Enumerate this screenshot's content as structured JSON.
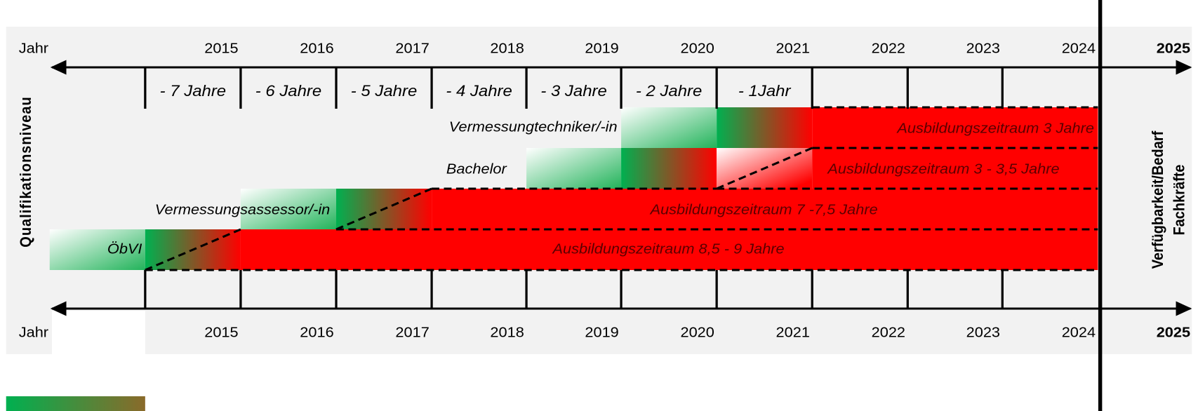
{
  "top_axis": {
    "start": "Jahr",
    "years": [
      "2015",
      "2016",
      "2017",
      "2018",
      "2019",
      "2020",
      "2021",
      "2022",
      "2023",
      "2024"
    ],
    "end": "2025"
  },
  "offsets": [
    "- 7 Jahre",
    "- 6 Jahre",
    "- 5 Jahre",
    "- 4 Jahre",
    "- 3 Jahre",
    "- 2 Jahre",
    "- 1Jahr"
  ],
  "rows": [
    {
      "label": "Vermessungtechniker/-in",
      "duration": "Ausbildungszeitraum 3 Jahre"
    },
    {
      "label": "Bachelor",
      "duration": "Ausbildungszeitraum 3 - 3,5 Jahre"
    },
    {
      "label": "Vermessungsassessor/-in",
      "duration": "Ausbildungszeitraum 7 -7,5 Jahre"
    },
    {
      "label": "ÖbVI",
      "duration": "Ausbildungszeitraum 8,5 - 9 Jahre"
    }
  ],
  "bottom_axis": {
    "start": "Jahr",
    "years": [
      "2015",
      "2016",
      "2017",
      "2018",
      "2019",
      "2020",
      "2021",
      "2022",
      "2023",
      "2024"
    ],
    "end": "2025"
  },
  "left_label": "Qualifikationsniveau",
  "right_label": [
    "Verfügbarkeit/Bedarf",
    "Fachkräfte"
  ]
}
